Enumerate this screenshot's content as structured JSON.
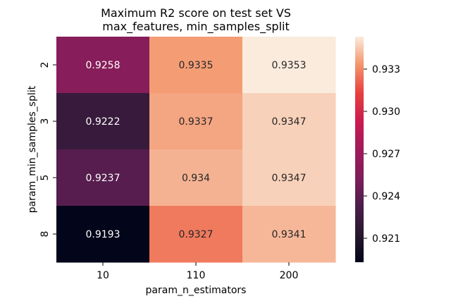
{
  "chart_data": {
    "type": "heatmap",
    "title_lines": [
      "Maximum R2 score on test set VS",
      "max_features, min_samples_split"
    ],
    "xlabel": "param_n_estimators",
    "ylabel": "param_min_samples_split",
    "x_categories": [
      "10",
      "110",
      "200"
    ],
    "y_categories": [
      "2",
      "3",
      "5",
      "8"
    ],
    "values": [
      [
        0.9258,
        0.9335,
        0.9353
      ],
      [
        0.9222,
        0.9337,
        0.9347
      ],
      [
        0.9237,
        0.934,
        0.9347
      ],
      [
        0.9193,
        0.9327,
        0.9341
      ]
    ],
    "cell_labels": [
      [
        "0.9258",
        "0.9335",
        "0.9353"
      ],
      [
        "0.9222",
        "0.9337",
        "0.9347"
      ],
      [
        "0.9237",
        "0.934",
        "0.9347"
      ],
      [
        "0.9193",
        "0.9327",
        "0.9341"
      ]
    ],
    "colormap": "rocket",
    "colorbar": {
      "vmin": 0.9193,
      "vmax": 0.9353,
      "ticks": [
        0.921,
        0.924,
        0.927,
        0.93,
        0.933
      ],
      "tick_labels": [
        "0.921",
        "0.924",
        "0.927",
        "0.930",
        "0.933"
      ]
    }
  }
}
